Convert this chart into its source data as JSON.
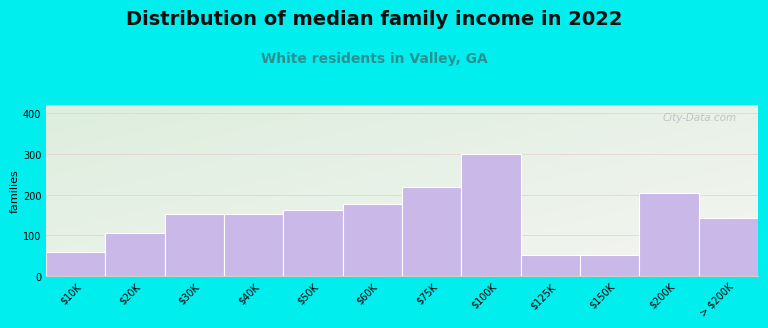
{
  "title": "Distribution of median family income in 2022",
  "subtitle": "White residents in Valley, GA",
  "ylabel": "families",
  "categories": [
    "$10K",
    "$20K",
    "$30K",
    "$40K",
    "$50K",
    "$60K",
    "$75K",
    "$100K",
    "$125K",
    "$150K",
    "$200K",
    "> $200K"
  ],
  "values": [
    60,
    107,
    153,
    153,
    163,
    177,
    220,
    300,
    52,
    52,
    205,
    143
  ],
  "bar_color": "#c9b8e8",
  "bar_edge_color": "#ffffff",
  "background_outer": "#00eeee",
  "plot_bg_top_left": "#ddeedd",
  "plot_bg_bottom_right": "#f5f5f2",
  "title_fontsize": 14,
  "subtitle_fontsize": 10,
  "ylabel_fontsize": 8,
  "tick_fontsize": 7,
  "yticks": [
    0,
    100,
    200,
    300,
    400
  ],
  "ylim": [
    0,
    420
  ],
  "watermark": "City-Data.com"
}
